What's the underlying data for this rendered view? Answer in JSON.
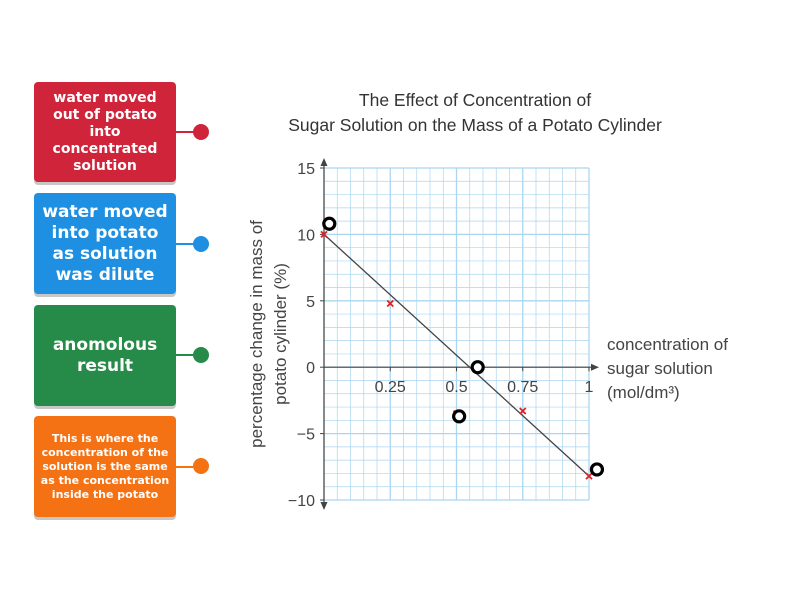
{
  "labels": [
    {
      "text": "water moved out of potato into concentrated solution",
      "color": "#d0243a"
    },
    {
      "text": "water moved into potato as solution was dilute",
      "color": "#1e8fe1"
    },
    {
      "text": "anomolous result",
      "color": "#268a48"
    },
    {
      "text": "This is where the concentration of the solution is the same as the concentration inside the potato",
      "color": "#f57214"
    }
  ],
  "chart_data": {
    "type": "scatter",
    "title": "The Effect of Concentration of Sugar Solution on the Mass of a Potato Cylinder",
    "title_lines": [
      "The Effect of Concentration of",
      "Sugar Solution on the Mass of a Potato Cylinder"
    ],
    "xlabel": "concentration of sugar solution (mol/dm³)",
    "xlabel_lines": [
      "concentration of",
      "sugar solution",
      "(mol/dm³)"
    ],
    "ylabel": "percentage change in mass of potato cylinder (%)",
    "ylabel_lines": [
      "percentage change in mass of",
      "potato cylinder (%)"
    ],
    "xlim": [
      0,
      1
    ],
    "ylim": [
      -10,
      15
    ],
    "xticks": [
      0.25,
      0.5,
      0.75,
      1
    ],
    "xtick_labels": [
      "0.25",
      "0.5",
      "0.75",
      "1"
    ],
    "yticks": [
      15,
      10,
      5,
      0,
      -5,
      -10
    ],
    "ytick_labels": [
      "15",
      "10",
      "5",
      "0",
      "−5",
      "−10"
    ],
    "grid": true,
    "series": [
      {
        "x": [
          0,
          0.25,
          0.5,
          0.75,
          1
        ],
        "y": [
          10,
          4.8,
          -3.5,
          -3.3,
          -8.2
        ],
        "marker": "x",
        "color": "#e02020"
      }
    ],
    "best_fit_line": {
      "x": [
        0,
        1
      ],
      "y": [
        10,
        -8.2
      ]
    },
    "drop_targets": [
      {
        "x": 0.02,
        "y": 10.8
      },
      {
        "x": 0.58,
        "y": 0
      },
      {
        "x": 0.51,
        "y": -3.7
      },
      {
        "x": 1.03,
        "y": -7.7
      }
    ],
    "colors": {
      "grid": "#aad6f0",
      "axis": "#444444",
      "line": "#444444",
      "marker": "#e02020"
    }
  }
}
